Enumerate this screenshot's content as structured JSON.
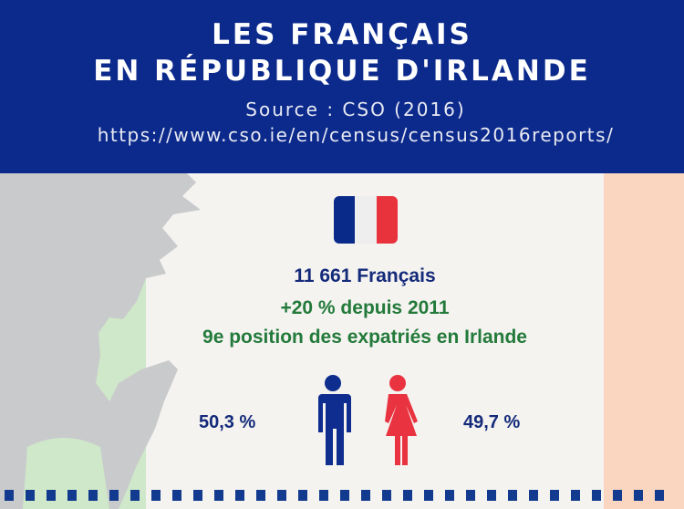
{
  "header": {
    "title_line1": "LES FRANÇAIS",
    "title_line2": "EN RÉPUBLIQUE D'IRLANDE",
    "source": "Source : CSO (2016)",
    "url": "https://www.cso.ie/en/census/census2016reports/"
  },
  "colors": {
    "header_bg": "#0c2a8c",
    "flag_blue": "#0a2a8a",
    "flag_white": "#eeeeee",
    "flag_red": "#e8323c",
    "green_text": "#237a3a",
    "blue_text": "#142a7a"
  },
  "stats": {
    "count": "11 661 Français",
    "growth": "+20 % depuis 2011",
    "rank": "9e position des expatriés en Irlande"
  },
  "gender": {
    "male_pct": "50,3 %",
    "female_pct": "49,7 %",
    "male_icon": "man-icon",
    "female_icon": "woman-icon"
  }
}
